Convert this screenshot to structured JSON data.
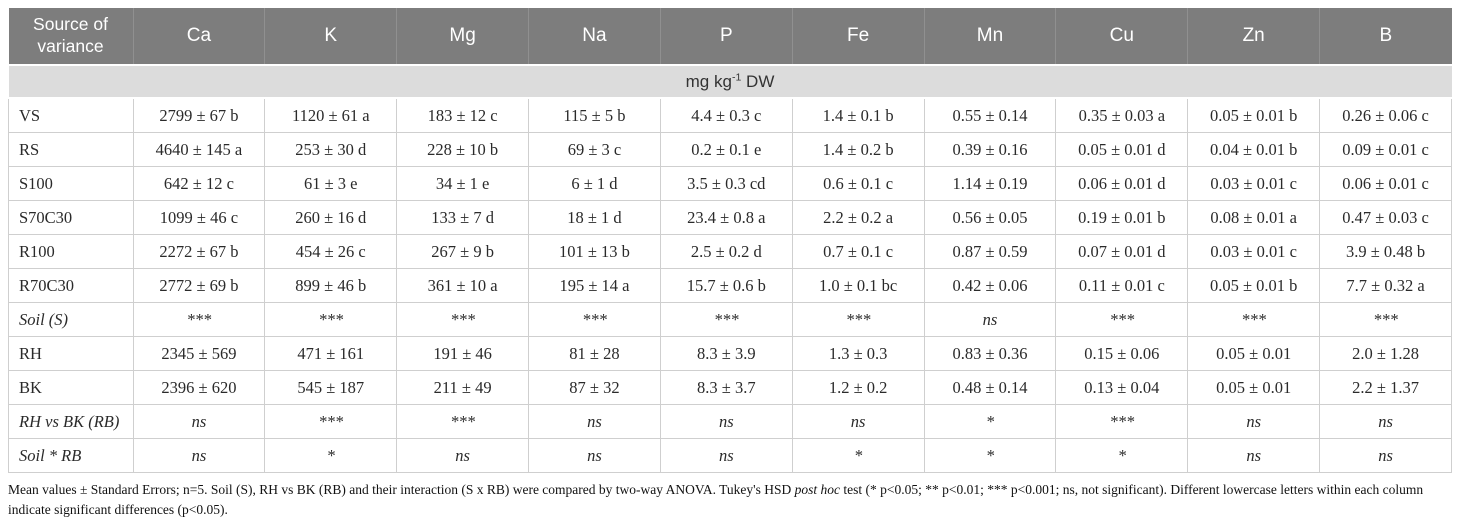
{
  "colors": {
    "header_bg": "#7d7d7d",
    "header_text": "#ffffff",
    "unit_bg": "#dcdcdc",
    "cell_border": "#cfcfcf",
    "body_text": "#2a2a2a"
  },
  "table": {
    "header": {
      "source_label": "Source of variance",
      "columns": [
        "Ca",
        "K",
        "Mg",
        "Na",
        "P",
        "Fe",
        "Mn",
        "Cu",
        "Zn",
        "B"
      ]
    },
    "unit": {
      "prefix": "mg kg",
      "superscript": "-1",
      "suffix": " DW"
    },
    "rows": [
      {
        "label": "VS",
        "italic": false,
        "values": [
          "2799 ± 67 b",
          "1120 ± 61 a",
          "183 ± 12 c",
          "115 ± 5 b",
          "4.4 ± 0.3 c",
          "1.4 ± 0.1 b",
          "0.55 ± 0.14",
          "0.35 ± 0.03 a",
          "0.05 ± 0.01 b",
          "0.26 ± 0.06 c"
        ]
      },
      {
        "label": "RS",
        "italic": false,
        "values": [
          "4640 ± 145 a",
          "253 ± 30 d",
          "228 ± 10 b",
          "69 ± 3 c",
          "0.2 ± 0.1 e",
          "1.4 ± 0.2 b",
          "0.39 ± 0.16",
          "0.05 ± 0.01 d",
          "0.04 ± 0.01 b",
          "0.09 ± 0.01 c"
        ]
      },
      {
        "label": "S100",
        "italic": false,
        "values": [
          "642 ± 12 c",
          "61 ± 3 e",
          "34 ± 1 e",
          "6 ± 1 d",
          "3.5 ± 0.3 cd",
          "0.6 ± 0.1 c",
          "1.14 ± 0.19",
          "0.06 ± 0.01 d",
          "0.03 ± 0.01 c",
          "0.06 ± 0.01 c"
        ]
      },
      {
        "label": "S70C30",
        "italic": false,
        "values": [
          "1099 ± 46 c",
          "260 ± 16 d",
          "133 ± 7 d",
          "18 ± 1 d",
          "23.4 ± 0.8 a",
          "2.2 ± 0.2 a",
          "0.56 ± 0.05",
          "0.19 ± 0.01 b",
          "0.08 ± 0.01 a",
          "0.47 ± 0.03 c"
        ]
      },
      {
        "label": "R100",
        "italic": false,
        "values": [
          "2272 ± 67 b",
          "454 ± 26 c",
          "267 ± 9 b",
          "101 ± 13 b",
          "2.5 ± 0.2 d",
          "0.7 ± 0.1 c",
          "0.87 ± 0.59",
          "0.07 ± 0.01 d",
          "0.03 ± 0.01 c",
          "3.9 ± 0.48 b"
        ]
      },
      {
        "label": "R70C30",
        "italic": false,
        "values": [
          "2772 ± 69 b",
          "899 ± 46 b",
          "361 ± 10 a",
          "195 ± 14 a",
          "15.7 ± 0.6 b",
          "1.0 ± 0.1 bc",
          "0.42 ± 0.06",
          "0.11 ± 0.01 c",
          "0.05 ± 0.01 b",
          "7.7 ± 0.32 a"
        ]
      },
      {
        "label": "Soil (S)",
        "italic": true,
        "values": [
          "***",
          "***",
          "***",
          "***",
          "***",
          "***",
          "ns",
          "***",
          "***",
          "***"
        ]
      },
      {
        "label": "RH",
        "italic": false,
        "values": [
          "2345 ± 569",
          "471 ± 161",
          "191 ± 46",
          "81 ± 28",
          "8.3 ± 3.9",
          "1.3 ± 0.3",
          "0.83 ± 0.36",
          "0.15 ± 0.06",
          "0.05 ± 0.01",
          "2.0 ± 1.28"
        ]
      },
      {
        "label": "BK",
        "italic": false,
        "values": [
          "2396 ± 620",
          "545 ± 187",
          "211 ± 49",
          "87 ± 32",
          "8.3 ± 3.7",
          "1.2 ± 0.2",
          "0.48 ± 0.14",
          "0.13 ± 0.04",
          "0.05 ± 0.01",
          "2.2 ± 1.37"
        ]
      },
      {
        "label": "RH vs BK (RB)",
        "italic": true,
        "values": [
          "ns",
          "***",
          "***",
          "ns",
          "ns",
          "ns",
          "*",
          "***",
          "ns",
          "ns"
        ]
      },
      {
        "label": "Soil * RB",
        "italic": true,
        "values": [
          "ns",
          "*",
          "ns",
          "ns",
          "ns",
          "*",
          "*",
          "*",
          "ns",
          "ns"
        ]
      }
    ]
  },
  "footnote": {
    "part1": "Mean values ± Standard Errors; n=5. Soil (S), RH vs BK (RB) and their interaction (S x RB) were compared by two-way ANOVA. Tukey's HSD ",
    "italic": "post hoc",
    "part2": " test (* p<0.05; ** p<0.01; *** p<0.001; ns, not significant). Different lowercase letters within each column indicate significant differences (p<0.05)."
  }
}
